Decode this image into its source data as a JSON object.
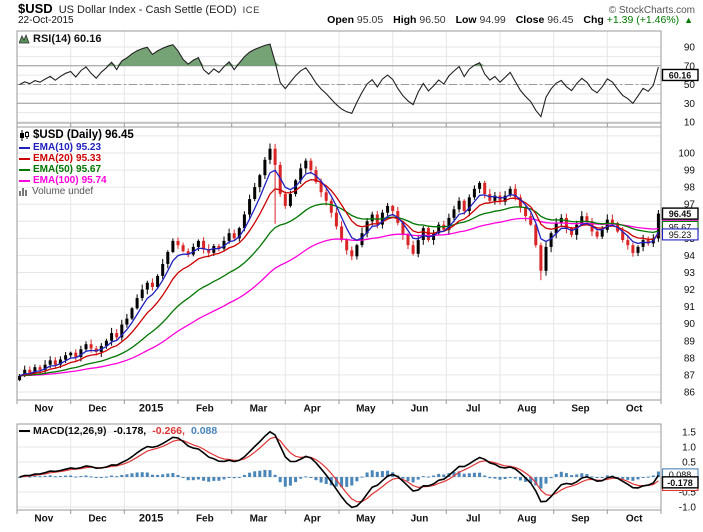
{
  "header": {
    "symbol": "$USD",
    "title": "US Dollar Index - Cash Settle (EOD)",
    "exchange": "ICE",
    "date": "22-Oct-2015",
    "copyright": "© StockCharts.com",
    "quote": {
      "open_label": "Open",
      "open": "95.05",
      "high_label": "High",
      "high": "96.50",
      "low_label": "Low",
      "low": "94.99",
      "close_label": "Close",
      "close": "96.45",
      "chg_label": "Chg",
      "chg": "+1.39 (+1.46%)",
      "chg_dir": "▲"
    }
  },
  "rsi_panel": {
    "label": "RSI(14)",
    "value": "60.16"
  },
  "legend": {
    "title": "$USD (Daily)",
    "value": "96.45",
    "volume_label": "Volume undef"
  },
  "macd_panel": {
    "label": "MACD(12,26,9)",
    "macd": "-0.178,",
    "signal": "-0.266,",
    "hist": "0.088"
  },
  "chart_data": {
    "type": "candlestick",
    "title": "$USD US Dollar Index - Cash Settle (EOD) ICE",
    "date": "22-Oct-2015",
    "x_months": [
      "Nov",
      "Dec",
      "2015",
      "Feb",
      "Mar",
      "Apr",
      "May",
      "Jun",
      "Jul",
      "Aug",
      "Sep",
      "Oct"
    ],
    "open0": 86.7,
    "close": [
      86.95,
      87.3,
      87.1,
      87.45,
      87.3,
      87.6,
      87.85,
      87.6,
      87.9,
      88.15,
      88.3,
      88.05,
      88.5,
      88.8,
      88.55,
      88.35,
      88.7,
      89.0,
      89.45,
      89.2,
      89.95,
      90.3,
      90.9,
      91.5,
      92.0,
      92.4,
      92.15,
      92.8,
      93.5,
      94.2,
      94.85,
      94.6,
      94.25,
      94.05,
      94.5,
      94.85,
      94.35,
      94.15,
      94.55,
      94.4,
      94.85,
      95.3,
      95.0,
      95.6,
      96.4,
      97.3,
      98.0,
      98.7,
      99.6,
      100.25,
      99.3,
      97.6,
      96.9,
      97.6,
      98.4,
      99.1,
      99.55,
      99.0,
      98.3,
      97.7,
      97.2,
      96.5,
      95.7,
      94.9,
      94.3,
      93.95,
      94.6,
      95.3,
      96.0,
      96.4,
      95.8,
      96.5,
      96.9,
      96.6,
      95.9,
      95.2,
      94.6,
      94.1,
      94.9,
      95.6,
      94.9,
      95.3,
      95.8,
      95.5,
      96.2,
      96.7,
      97.2,
      96.6,
      97.4,
      97.9,
      98.25,
      97.6,
      97.2,
      97.5,
      97.15,
      97.5,
      97.9,
      97.4,
      96.8,
      96.3,
      95.8,
      94.6,
      93.1,
      94.5,
      95.3,
      95.9,
      96.2,
      95.6,
      95.2,
      95.8,
      96.3,
      96.0,
      95.4,
      95.1,
      95.5,
      96.1,
      95.9,
      95.4,
      94.9,
      94.6,
      94.15,
      94.5,
      94.9,
      94.7,
      95.0,
      96.45
    ],
    "spikes": [
      {
        "i": 50,
        "low": 95.85
      },
      {
        "i": 102,
        "low": 92.55
      }
    ],
    "ema": [
      {
        "label": "EMA(10)",
        "value_text": "95.23",
        "render_span": 5,
        "color": "#2020c0"
      },
      {
        "label": "EMA(20)",
        "value_text": "95.33",
        "render_span": 10,
        "color": "#cc0000"
      },
      {
        "label": "EMA(50)",
        "value_text": "95.67",
        "render_span": 25,
        "color": "#007700"
      },
      {
        "label": "EMA(100)",
        "value_text": "95.74",
        "render_span": 50,
        "color": "#ff00dd"
      }
    ],
    "main": {
      "ylim": [
        85.5,
        101.5
      ],
      "yticks": [
        100,
        99,
        98,
        97,
        96,
        95,
        94,
        93,
        92,
        91,
        90,
        89,
        88,
        87,
        86
      ],
      "markers": [
        {
          "v": 95.74,
          "text": "95.74",
          "color": "#ff00dd"
        },
        {
          "v": 95.33,
          "text": "95.33",
          "color": "#cc0000"
        },
        {
          "v": 95.67,
          "text": "95.67",
          "color": "#007700"
        },
        {
          "v": 95.23,
          "text": "95.23",
          "color": "#2020c0"
        },
        {
          "v": 96.45,
          "text": "96.45",
          "color": "#000000",
          "bold": true
        }
      ]
    },
    "rsi": {
      "yticks": [
        90,
        70,
        50,
        30,
        10
      ],
      "overbought": 70,
      "midline": 50,
      "oversold": 30,
      "render_period": 7,
      "markers": [
        {
          "v": 60.16,
          "text": "60.16",
          "color": "#000000",
          "bold": true
        }
      ]
    },
    "macd": {
      "fast": 6,
      "slow": 13,
      "signal_span": 4,
      "yticks": [
        "1.5",
        "1.0",
        "0.5",
        "-0.5",
        "-1.0"
      ],
      "ytick_vals": [
        1.5,
        1.0,
        0.5,
        -0.5,
        -1.0
      ],
      "markers": [
        {
          "v": -0.266,
          "text": "-0.266",
          "color": "#e03535"
        },
        {
          "v": 0.088,
          "text": "0.088",
          "color": "#4a86b8"
        },
        {
          "v": -0.178,
          "text": "-0.178",
          "color": "#000000",
          "bold": true
        }
      ]
    },
    "colors": {
      "up": "#000000",
      "down": "#d92525",
      "grid": "#e6e6e6",
      "border": "#999999",
      "hist": "#4a86b8",
      "macd_line": "#000000",
      "signal_line": "#e03535",
      "rsi_line": "#222222",
      "rsi_fill": "#669966",
      "band_line": "#999999"
    }
  }
}
